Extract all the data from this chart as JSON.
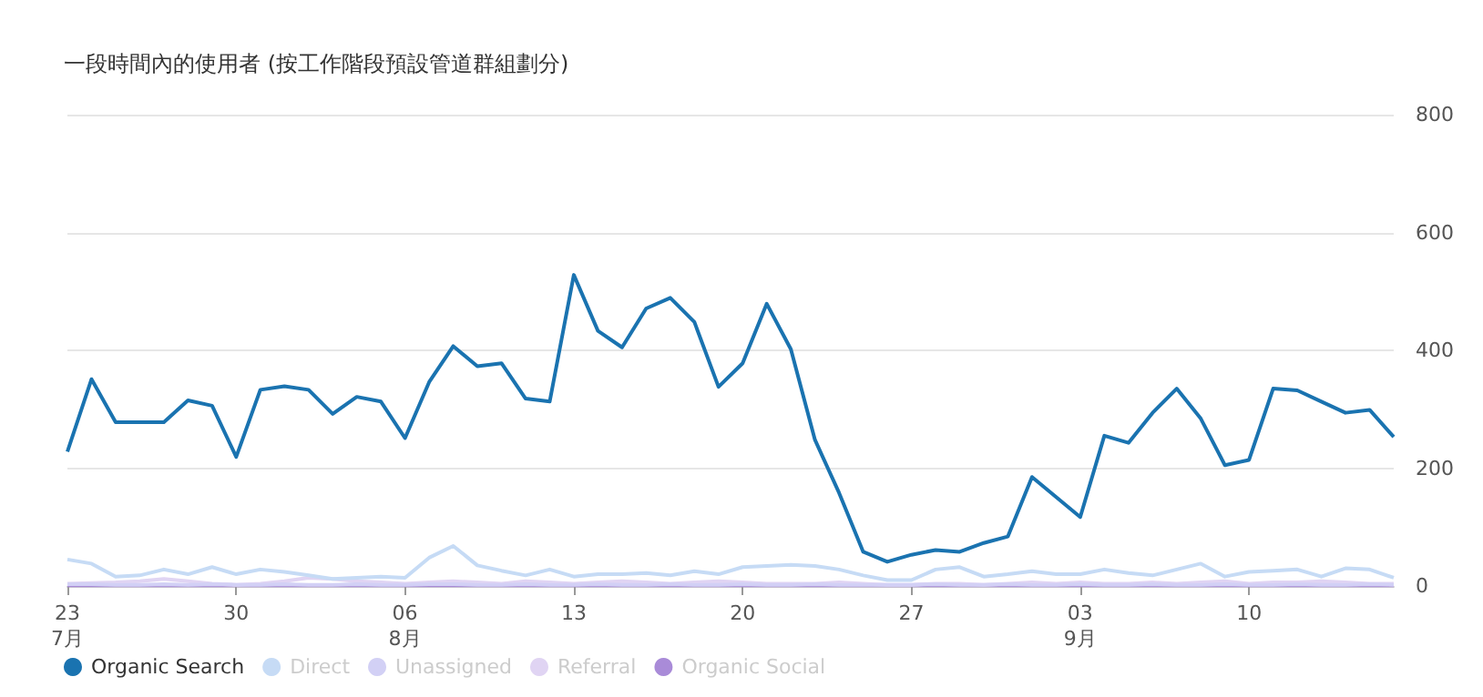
{
  "chart_data": {
    "type": "line",
    "title": "一段時間內的使用者 (按工作階段預設管道群組劃分)",
    "x": [
      "--07-23",
      "--07-24",
      "--07-25",
      "--07-26",
      "--07-27",
      "--07-28",
      "--07-29",
      "--07-30",
      "--07-31",
      "--08-01",
      "--08-02",
      "--08-03",
      "--08-04",
      "--08-05",
      "--08-06",
      "--08-07",
      "--08-08",
      "--08-09",
      "--08-10",
      "--08-11",
      "--08-12",
      "--08-13",
      "--08-14",
      "--08-15",
      "--08-16",
      "--08-17",
      "--08-18",
      "--08-19",
      "--08-20",
      "--08-21",
      "--08-22",
      "--08-23",
      "--08-24",
      "--08-25",
      "--08-26",
      "--08-27",
      "--08-28",
      "--08-29",
      "--08-30",
      "--08-31",
      "--09-01",
      "--09-02",
      "--09-03",
      "--09-04",
      "--09-05",
      "--09-06",
      "--09-07",
      "--09-08",
      "--09-09",
      "--09-10",
      "--09-11",
      "--09-12",
      "--09-13",
      "--09-14",
      "--09-15",
      "--09-16"
    ],
    "xlim": [
      "--07-23",
      "--09-16"
    ],
    "xticks": [
      {
        "value": "--07-23",
        "label": "23\n7月"
      },
      {
        "value": "--07-30",
        "label": "30"
      },
      {
        "value": "--08-06",
        "label": "06\n8月"
      },
      {
        "value": "--08-13",
        "label": "13"
      },
      {
        "value": "--08-20",
        "label": "20"
      },
      {
        "value": "--08-27",
        "label": "27"
      },
      {
        "value": "--09-03",
        "label": "03\n9月"
      },
      {
        "value": "--09-10",
        "label": "10"
      }
    ],
    "ylim": [
      0,
      800
    ],
    "yticks": [
      0,
      200,
      400,
      600,
      800
    ],
    "grid": "y",
    "legend": "bottom left",
    "marker": "none",
    "series": [
      {
        "name": "Organic Search",
        "color": "#1a73b0",
        "values": [
          228,
          351,
          278,
          278,
          278,
          315,
          306,
          219,
          333,
          339,
          333,
          292,
          321,
          313,
          251,
          346,
          407,
          373,
          378,
          318,
          313,
          528,
          433,
          405,
          471,
          489,
          448,
          338,
          378,
          479,
          402,
          248,
          158,
          58,
          41,
          53,
          61,
          58,
          73,
          84,
          185,
          151,
          117,
          255,
          243,
          294,
          335,
          284,
          205,
          214,
          335,
          332,
          313,
          294,
          299,
          253
        ]
      },
      {
        "name": "Direct",
        "color": "#c6dbf5",
        "values": [
          45,
          38,
          16,
          18,
          28,
          20,
          32,
          20,
          28,
          24,
          18,
          12,
          14,
          16,
          14,
          48,
          68,
          35,
          26,
          18,
          28,
          16,
          20,
          20,
          22,
          18,
          25,
          20,
          32,
          34,
          36,
          34,
          28,
          18,
          10,
          10,
          28,
          32,
          16,
          20,
          25,
          20,
          20,
          28,
          22,
          18,
          28,
          38,
          16,
          24,
          26,
          28,
          16,
          30,
          28,
          14
        ]
      },
      {
        "name": "Unassigned",
        "color": "#d2d0f5",
        "values": [
          3,
          3,
          2,
          2,
          3,
          2,
          3,
          2,
          2,
          3,
          2,
          2,
          3,
          2,
          2,
          3,
          3,
          2,
          2,
          3,
          2,
          2,
          3,
          2,
          2,
          3,
          2,
          2,
          3,
          2,
          2,
          3,
          2,
          2,
          2,
          2,
          3,
          2,
          2,
          3,
          2,
          2,
          3,
          2,
          2,
          3,
          2,
          2,
          3,
          2,
          2,
          3,
          2,
          2,
          3,
          2
        ]
      },
      {
        "name": "Referral",
        "color": "#e0d4f3",
        "values": [
          4,
          5,
          6,
          8,
          12,
          8,
          4,
          2,
          4,
          8,
          14,
          12,
          8,
          6,
          4,
          6,
          8,
          6,
          4,
          8,
          6,
          4,
          6,
          8,
          6,
          4,
          6,
          8,
          6,
          4,
          4,
          4,
          6,
          4,
          2,
          2,
          4,
          4,
          2,
          4,
          6,
          4,
          6,
          4,
          4,
          6,
          4,
          6,
          8,
          4,
          6,
          6,
          8,
          6,
          4,
          4
        ]
      },
      {
        "name": "Organic Social",
        "color": "#a98bd8",
        "values": [
          1,
          1,
          1,
          1,
          1,
          1,
          1,
          1,
          1,
          1,
          1,
          1,
          1,
          1,
          1,
          1,
          1,
          1,
          1,
          1,
          1,
          1,
          1,
          1,
          1,
          1,
          1,
          1,
          1,
          1,
          1,
          1,
          1,
          1,
          1,
          1,
          1,
          1,
          1,
          1,
          1,
          1,
          1,
          1,
          1,
          1,
          1,
          1,
          1,
          1,
          1,
          1,
          1,
          1,
          1,
          1
        ]
      }
    ]
  }
}
